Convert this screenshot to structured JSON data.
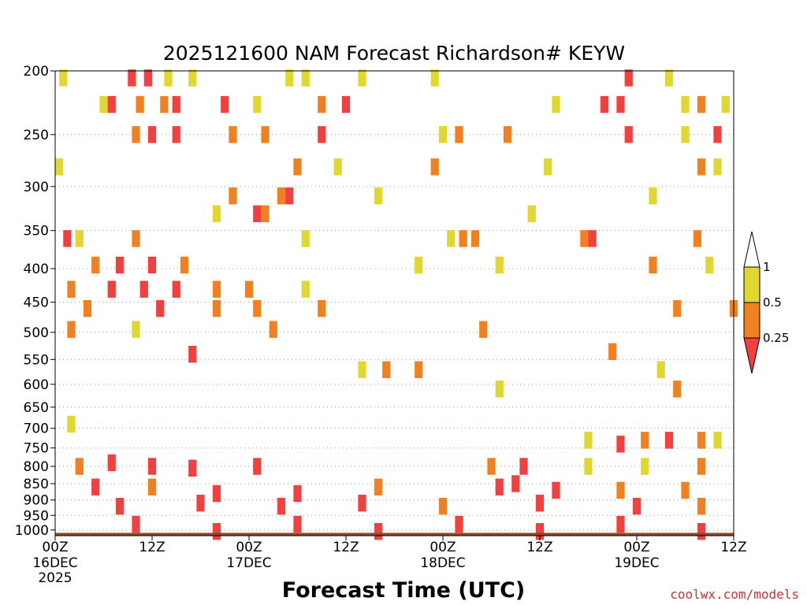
{
  "chart_data": {
    "type": "heatmap",
    "title": "2025121600 NAM Forecast Richardson# KEYW",
    "xlabel": "Forecast Time (UTC)",
    "ylabel": "",
    "credit": "coolwx.com/models",
    "x_ticks": [
      {
        "hour": 0,
        "label": "00Z",
        "sub": "16DEC",
        "sub2": "2025"
      },
      {
        "hour": 12,
        "label": "12Z",
        "sub": "",
        "sub2": ""
      },
      {
        "hour": 24,
        "label": "00Z",
        "sub": "17DEC",
        "sub2": ""
      },
      {
        "hour": 36,
        "label": "12Z",
        "sub": "",
        "sub2": ""
      },
      {
        "hour": 48,
        "label": "00Z",
        "sub": "18DEC",
        "sub2": ""
      },
      {
        "hour": 60,
        "label": "12Z",
        "sub": "",
        "sub2": ""
      },
      {
        "hour": 72,
        "label": "00Z",
        "sub": "19DEC",
        "sub2": ""
      },
      {
        "hour": 84,
        "label": "12Z",
        "sub": "",
        "sub2": ""
      }
    ],
    "xlim": [
      0,
      84
    ],
    "y_ticks": [
      200,
      250,
      300,
      350,
      400,
      450,
      500,
      550,
      600,
      650,
      700,
      750,
      800,
      850,
      900,
      950,
      1000
    ],
    "y_tick_labels": [
      "200",
      "250",
      "300",
      "350",
      "400",
      "450",
      "500",
      "550",
      "600",
      "650",
      "700",
      "750",
      "800",
      "850",
      "900",
      "950",
      "1000"
    ],
    "ylim": [
      200,
      1020
    ],
    "y_scale": "log-pressure (inverted)",
    "grid": "dotted horizontal",
    "legend_position": "right",
    "colorbar": {
      "labels": [
        "1",
        "0.5",
        "0.25"
      ],
      "levels": [
        0.25,
        0.5,
        1
      ],
      "colors": {
        "below_0.25": "#f04040",
        "0.25_to_0.5": "#f08020",
        "0.5_to_1": "#e0d830",
        "above_1": "#ffffff"
      }
    },
    "surface_color": "#8a4a2a",
    "cells": [
      {
        "x": 1,
        "p": 205,
        "v": 0.7
      },
      {
        "x": 9.5,
        "p": 205,
        "v": 0.1
      },
      {
        "x": 11.5,
        "p": 205,
        "v": 0.1
      },
      {
        "x": 14,
        "p": 205,
        "v": 0.7
      },
      {
        "x": 17,
        "p": 205,
        "v": 0.7
      },
      {
        "x": 29,
        "p": 205,
        "v": 0.7
      },
      {
        "x": 31,
        "p": 205,
        "v": 0.7
      },
      {
        "x": 38,
        "p": 205,
        "v": 0.7
      },
      {
        "x": 47,
        "p": 205,
        "v": 0.7
      },
      {
        "x": 71,
        "p": 205,
        "v": 0.1
      },
      {
        "x": 76,
        "p": 205,
        "v": 0.7
      },
      {
        "x": 6,
        "p": 225,
        "v": 0.7
      },
      {
        "x": 7,
        "p": 225,
        "v": 0.1
      },
      {
        "x": 10.5,
        "p": 225,
        "v": 0.4
      },
      {
        "x": 13.5,
        "p": 225,
        "v": 0.4
      },
      {
        "x": 15,
        "p": 225,
        "v": 0.1
      },
      {
        "x": 21,
        "p": 225,
        "v": 0.1
      },
      {
        "x": 25,
        "p": 225,
        "v": 0.7
      },
      {
        "x": 33,
        "p": 225,
        "v": 0.4
      },
      {
        "x": 36,
        "p": 225,
        "v": 0.1
      },
      {
        "x": 62,
        "p": 225,
        "v": 0.7
      },
      {
        "x": 68,
        "p": 225,
        "v": 0.1
      },
      {
        "x": 70,
        "p": 225,
        "v": 0.1
      },
      {
        "x": 78,
        "p": 225,
        "v": 0.7
      },
      {
        "x": 80,
        "p": 225,
        "v": 0.4
      },
      {
        "x": 83,
        "p": 225,
        "v": 0.7
      },
      {
        "x": 10,
        "p": 250,
        "v": 0.4
      },
      {
        "x": 12,
        "p": 250,
        "v": 0.1
      },
      {
        "x": 15,
        "p": 250,
        "v": 0.1
      },
      {
        "x": 22,
        "p": 250,
        "v": 0.4
      },
      {
        "x": 26,
        "p": 250,
        "v": 0.4
      },
      {
        "x": 33,
        "p": 250,
        "v": 0.1
      },
      {
        "x": 48,
        "p": 250,
        "v": 0.7
      },
      {
        "x": 50,
        "p": 250,
        "v": 0.4
      },
      {
        "x": 56,
        "p": 250,
        "v": 0.4
      },
      {
        "x": 71,
        "p": 250,
        "v": 0.1
      },
      {
        "x": 78,
        "p": 250,
        "v": 0.7
      },
      {
        "x": 82,
        "p": 250,
        "v": 0.1
      },
      {
        "x": 0.5,
        "p": 280,
        "v": 0.7
      },
      {
        "x": 30,
        "p": 280,
        "v": 0.4
      },
      {
        "x": 35,
        "p": 280,
        "v": 0.7
      },
      {
        "x": 47,
        "p": 280,
        "v": 0.4
      },
      {
        "x": 61,
        "p": 280,
        "v": 0.7
      },
      {
        "x": 80,
        "p": 280,
        "v": 0.4
      },
      {
        "x": 82,
        "p": 280,
        "v": 0.7
      },
      {
        "x": 22,
        "p": 310,
        "v": 0.4
      },
      {
        "x": 28,
        "p": 310,
        "v": 0.4
      },
      {
        "x": 29,
        "p": 310,
        "v": 0.1
      },
      {
        "x": 40,
        "p": 310,
        "v": 0.7
      },
      {
        "x": 74,
        "p": 310,
        "v": 0.7
      },
      {
        "x": 20,
        "p": 330,
        "v": 0.7
      },
      {
        "x": 25,
        "p": 330,
        "v": 0.1
      },
      {
        "x": 26,
        "p": 330,
        "v": 0.4
      },
      {
        "x": 59,
        "p": 330,
        "v": 0.7
      },
      {
        "x": 1.5,
        "p": 360,
        "v": 0.1
      },
      {
        "x": 3,
        "p": 360,
        "v": 0.7
      },
      {
        "x": 10,
        "p": 360,
        "v": 0.4
      },
      {
        "x": 31,
        "p": 360,
        "v": 0.7
      },
      {
        "x": 49,
        "p": 360,
        "v": 0.7
      },
      {
        "x": 50.5,
        "p": 360,
        "v": 0.4
      },
      {
        "x": 52,
        "p": 360,
        "v": 0.4
      },
      {
        "x": 65.5,
        "p": 360,
        "v": 0.4
      },
      {
        "x": 66.5,
        "p": 360,
        "v": 0.1
      },
      {
        "x": 79.5,
        "p": 360,
        "v": 0.4
      },
      {
        "x": 5,
        "p": 395,
        "v": 0.4
      },
      {
        "x": 8,
        "p": 395,
        "v": 0.1
      },
      {
        "x": 12,
        "p": 395,
        "v": 0.1
      },
      {
        "x": 16,
        "p": 395,
        "v": 0.4
      },
      {
        "x": 45,
        "p": 395,
        "v": 0.7
      },
      {
        "x": 55,
        "p": 395,
        "v": 0.7
      },
      {
        "x": 74,
        "p": 395,
        "v": 0.4
      },
      {
        "x": 81,
        "p": 395,
        "v": 0.7
      },
      {
        "x": 2,
        "p": 430,
        "v": 0.4
      },
      {
        "x": 7,
        "p": 430,
        "v": 0.1
      },
      {
        "x": 11,
        "p": 430,
        "v": 0.1
      },
      {
        "x": 15,
        "p": 430,
        "v": 0.1
      },
      {
        "x": 20,
        "p": 430,
        "v": 0.4
      },
      {
        "x": 24,
        "p": 430,
        "v": 0.4
      },
      {
        "x": 31,
        "p": 430,
        "v": 0.7
      },
      {
        "x": 4,
        "p": 460,
        "v": 0.4
      },
      {
        "x": 13,
        "p": 460,
        "v": 0.1
      },
      {
        "x": 20,
        "p": 460,
        "v": 0.4
      },
      {
        "x": 25,
        "p": 460,
        "v": 0.4
      },
      {
        "x": 33,
        "p": 460,
        "v": 0.4
      },
      {
        "x": 77,
        "p": 460,
        "v": 0.4
      },
      {
        "x": 84,
        "p": 460,
        "v": 0.4
      },
      {
        "x": 2,
        "p": 495,
        "v": 0.4
      },
      {
        "x": 10,
        "p": 495,
        "v": 0.7
      },
      {
        "x": 27,
        "p": 495,
        "v": 0.4
      },
      {
        "x": 53,
        "p": 495,
        "v": 0.4
      },
      {
        "x": 17,
        "p": 540,
        "v": 0.1
      },
      {
        "x": 69,
        "p": 535,
        "v": 0.4
      },
      {
        "x": 38,
        "p": 570,
        "v": 0.7
      },
      {
        "x": 41,
        "p": 570,
        "v": 0.4
      },
      {
        "x": 45,
        "p": 570,
        "v": 0.4
      },
      {
        "x": 75,
        "p": 570,
        "v": 0.7
      },
      {
        "x": 55,
        "p": 610,
        "v": 0.7
      },
      {
        "x": 77,
        "p": 610,
        "v": 0.4
      },
      {
        "x": 2,
        "p": 690,
        "v": 0.7
      },
      {
        "x": 66,
        "p": 730,
        "v": 0.7
      },
      {
        "x": 70,
        "p": 740,
        "v": 0.1
      },
      {
        "x": 73,
        "p": 730,
        "v": 0.4
      },
      {
        "x": 76,
        "p": 730,
        "v": 0.1
      },
      {
        "x": 80,
        "p": 730,
        "v": 0.4
      },
      {
        "x": 82,
        "p": 730,
        "v": 0.7
      },
      {
        "x": 3,
        "p": 800,
        "v": 0.4
      },
      {
        "x": 7,
        "p": 790,
        "v": 0.1
      },
      {
        "x": 12,
        "p": 800,
        "v": 0.1
      },
      {
        "x": 17,
        "p": 805,
        "v": 0.1
      },
      {
        "x": 25,
        "p": 800,
        "v": 0.1
      },
      {
        "x": 54,
        "p": 800,
        "v": 0.4
      },
      {
        "x": 58,
        "p": 800,
        "v": 0.1
      },
      {
        "x": 66,
        "p": 800,
        "v": 0.7
      },
      {
        "x": 73,
        "p": 800,
        "v": 0.7
      },
      {
        "x": 80,
        "p": 800,
        "v": 0.4
      },
      {
        "x": 5,
        "p": 860,
        "v": 0.1
      },
      {
        "x": 12,
        "p": 860,
        "v": 0.4
      },
      {
        "x": 20,
        "p": 880,
        "v": 0.1
      },
      {
        "x": 30,
        "p": 880,
        "v": 0.1
      },
      {
        "x": 40,
        "p": 860,
        "v": 0.4
      },
      {
        "x": 55,
        "p": 860,
        "v": 0.1
      },
      {
        "x": 57,
        "p": 850,
        "v": 0.1
      },
      {
        "x": 62,
        "p": 870,
        "v": 0.1
      },
      {
        "x": 70,
        "p": 870,
        "v": 0.4
      },
      {
        "x": 78,
        "p": 870,
        "v": 0.4
      },
      {
        "x": 8,
        "p": 920,
        "v": 0.1
      },
      {
        "x": 18,
        "p": 910,
        "v": 0.1
      },
      {
        "x": 28,
        "p": 920,
        "v": 0.1
      },
      {
        "x": 38,
        "p": 910,
        "v": 0.1
      },
      {
        "x": 48,
        "p": 920,
        "v": 0.4
      },
      {
        "x": 60,
        "p": 910,
        "v": 0.1
      },
      {
        "x": 72,
        "p": 920,
        "v": 0.1
      },
      {
        "x": 80,
        "p": 920,
        "v": 0.4
      },
      {
        "x": 10,
        "p": 980,
        "v": 0.1
      },
      {
        "x": 30,
        "p": 980,
        "v": 0.1
      },
      {
        "x": 50,
        "p": 980,
        "v": 0.1
      },
      {
        "x": 70,
        "p": 980,
        "v": 0.1
      },
      {
        "x": 20,
        "p": 1005,
        "v": 0.1
      },
      {
        "x": 40,
        "p": 1005,
        "v": 0.1
      },
      {
        "x": 60,
        "p": 1005,
        "v": 0.1
      },
      {
        "x": 80,
        "p": 1005,
        "v": 0.1
      }
    ]
  }
}
